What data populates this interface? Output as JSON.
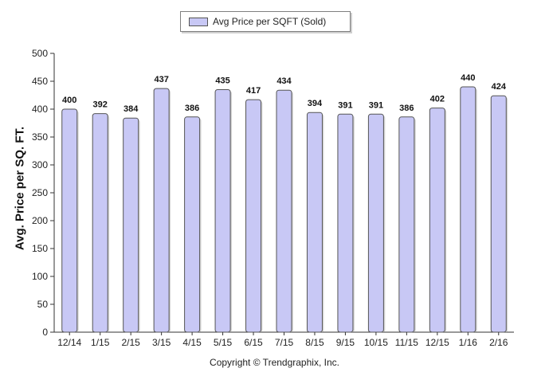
{
  "legend": {
    "label": "Avg Price per SQFT (Sold)"
  },
  "copyright": "Copyright © Trendgraphix, Inc.",
  "colors": {
    "bar_fill": "#c8c8f5",
    "bar_stroke": "#555555",
    "axis": "#333333"
  },
  "chart_data": {
    "type": "bar",
    "categories": [
      "12/14",
      "1/15",
      "2/15",
      "3/15",
      "4/15",
      "5/15",
      "6/15",
      "7/15",
      "8/15",
      "9/15",
      "10/15",
      "11/15",
      "12/15",
      "1/16",
      "2/16"
    ],
    "series": [
      {
        "name": "Avg Price per SQFT (Sold)",
        "values": [
          400,
          392,
          384,
          437,
          386,
          435,
          417,
          434,
          394,
          391,
          391,
          386,
          402,
          440,
          424
        ]
      }
    ],
    "ylabel": "Avg. Price per SQ. FT.",
    "xlabel": "",
    "ylim": [
      0,
      500
    ],
    "yticks": [
      0,
      50,
      100,
      150,
      200,
      250,
      300,
      350,
      400,
      450,
      500
    ],
    "grid": false,
    "legend_position": "top-center"
  }
}
